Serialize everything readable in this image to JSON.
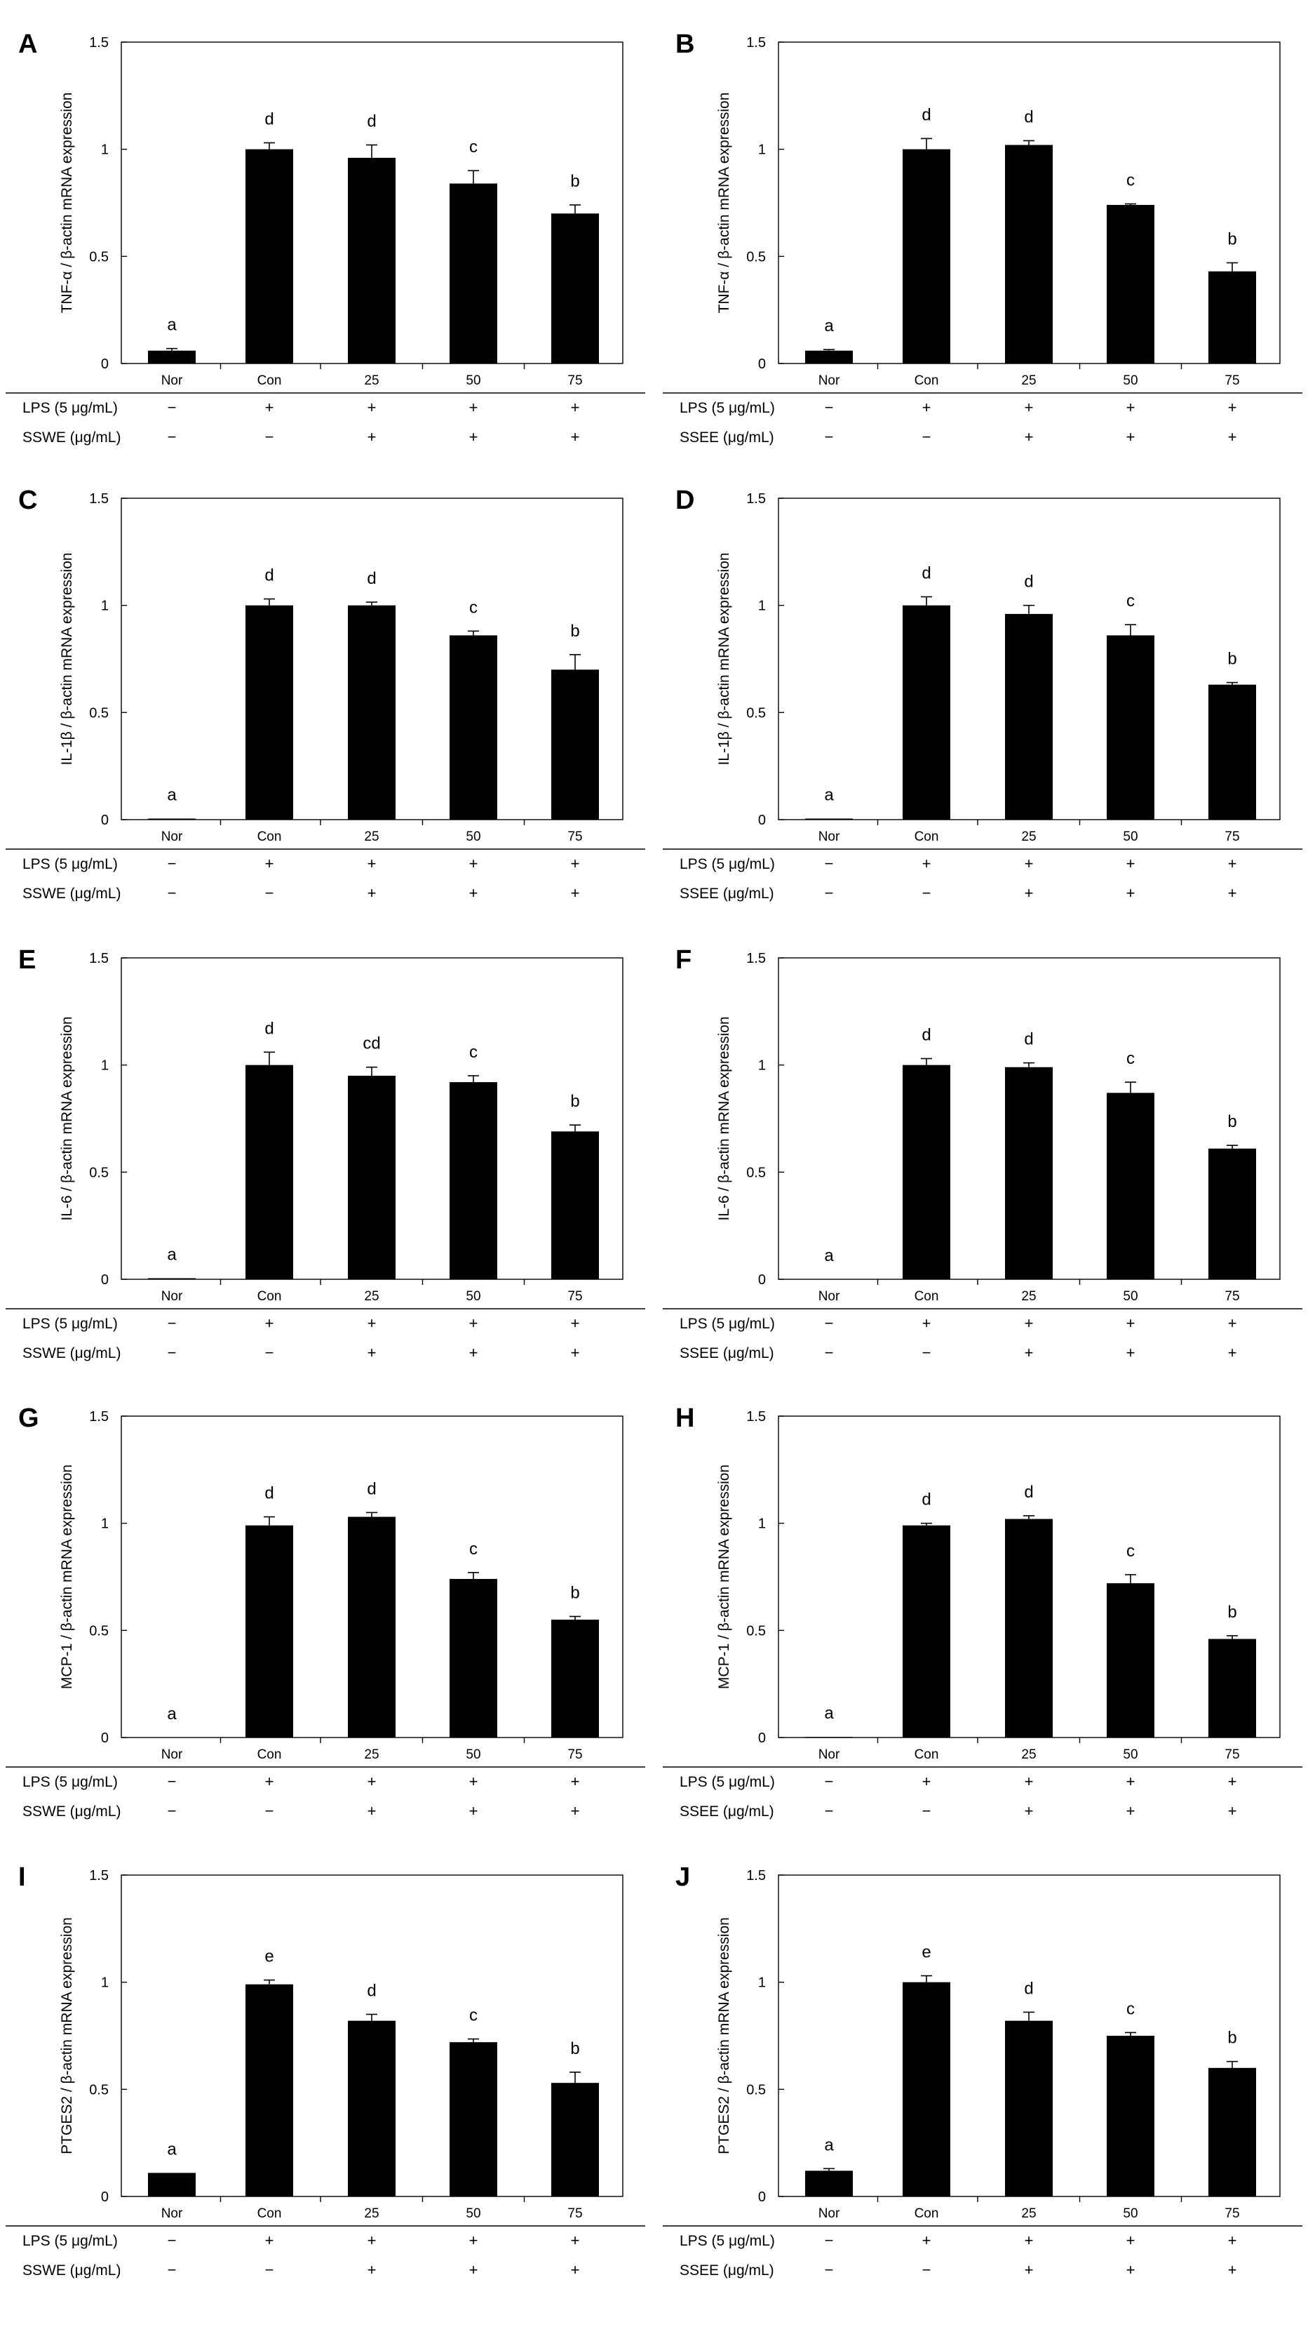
{
  "chart_data": [
    {
      "panel": "A",
      "type": "bar",
      "ylabel_prefix": "TNF-α",
      "ylabel_suffix": "β-actin mRNA expression",
      "categories": [
        "Nor",
        "Con",
        "25",
        "50",
        "75"
      ],
      "values": [
        0.06,
        1.0,
        0.96,
        0.84,
        0.7
      ],
      "errors": [
        0.01,
        0.03,
        0.06,
        0.06,
        0.04
      ],
      "letters": [
        "a",
        "d",
        "d",
        "c",
        "b"
      ],
      "ylim": [
        0,
        1.5
      ],
      "yticks": [
        "0",
        "0.5",
        "1",
        "1.5"
      ],
      "rows": [
        {
          "label": "LPS (5 μg/mL)",
          "values": [
            "−",
            "+",
            "+",
            "+",
            "+"
          ]
        },
        {
          "label": "SSWE (μg/mL)",
          "values": [
            "−",
            "−",
            "+",
            "+",
            "+"
          ]
        }
      ]
    },
    {
      "panel": "B",
      "type": "bar",
      "ylabel_prefix": "TNF-α",
      "ylabel_suffix": "β-actin mRNA expression",
      "categories": [
        "Nor",
        "Con",
        "25",
        "50",
        "75"
      ],
      "values": [
        0.06,
        1.0,
        1.02,
        0.74,
        0.43
      ],
      "errors": [
        0.005,
        0.05,
        0.02,
        0.005,
        0.04
      ],
      "letters": [
        "a",
        "d",
        "d",
        "c",
        "b"
      ],
      "ylim": [
        0,
        1.5
      ],
      "yticks": [
        "0",
        "0.5",
        "1",
        "1.5"
      ],
      "rows": [
        {
          "label": "LPS (5 μg/mL)",
          "values": [
            "−",
            "+",
            "+",
            "+",
            "+"
          ]
        },
        {
          "label": "SSEE (μg/mL)",
          "values": [
            "−",
            "−",
            "+",
            "+",
            "+"
          ]
        }
      ]
    },
    {
      "panel": "C",
      "type": "bar",
      "ylabel_prefix": "IL-1β",
      "ylabel_suffix": "β-actin mRNA expression",
      "categories": [
        "Nor",
        "Con",
        "25",
        "50",
        "75"
      ],
      "values": [
        0.005,
        1.0,
        1.0,
        0.86,
        0.7
      ],
      "errors": [
        0.0,
        0.03,
        0.015,
        0.02,
        0.07
      ],
      "letters": [
        "a",
        "d",
        "d",
        "c",
        "b"
      ],
      "ylim": [
        0,
        1.5
      ],
      "yticks": [
        "0",
        "0.5",
        "1",
        "1.5"
      ],
      "rows": [
        {
          "label": "LPS (5 μg/mL)",
          "values": [
            "−",
            "+",
            "+",
            "+",
            "+"
          ]
        },
        {
          "label": "SSWE (μg/mL)",
          "values": [
            "−",
            "−",
            "+",
            "+",
            "+"
          ]
        }
      ]
    },
    {
      "panel": "D",
      "type": "bar",
      "ylabel_prefix": "IL-1β",
      "ylabel_suffix": "β-actin mRNA expression",
      "categories": [
        "Nor",
        "Con",
        "25",
        "50",
        "75"
      ],
      "values": [
        0.005,
        1.0,
        0.96,
        0.86,
        0.63
      ],
      "errors": [
        0.0,
        0.04,
        0.04,
        0.05,
        0.01
      ],
      "letters": [
        "a",
        "d",
        "d",
        "c",
        "b"
      ],
      "ylim": [
        0,
        1.5
      ],
      "yticks": [
        "0",
        "0.5",
        "1",
        "1.5"
      ],
      "rows": [
        {
          "label": "LPS (5 μg/mL)",
          "values": [
            "−",
            "+",
            "+",
            "+",
            "+"
          ]
        },
        {
          "label": "SSEE (μg/mL)",
          "values": [
            "−",
            "−",
            "+",
            "+",
            "+"
          ]
        }
      ]
    },
    {
      "panel": "E",
      "type": "bar",
      "ylabel_prefix": "IL-6",
      "ylabel_suffix": "β-actin mRNA expression",
      "categories": [
        "Nor",
        "Con",
        "25",
        "50",
        "75"
      ],
      "values": [
        0.005,
        1.0,
        0.95,
        0.92,
        0.69
      ],
      "errors": [
        0.0,
        0.06,
        0.04,
        0.03,
        0.03
      ],
      "letters": [
        "a",
        "d",
        "cd",
        "c",
        "b"
      ],
      "ylim": [
        0,
        1.5
      ],
      "yticks": [
        "0",
        "0.5",
        "1",
        "1.5"
      ],
      "rows": [
        {
          "label": "LPS (5 μg/mL)",
          "values": [
            "−",
            "+",
            "+",
            "+",
            "+"
          ]
        },
        {
          "label": "SSWE (μg/mL)",
          "values": [
            "−",
            "−",
            "+",
            "+",
            "+"
          ]
        }
      ]
    },
    {
      "panel": "F",
      "type": "bar",
      "ylabel_prefix": "IL-6",
      "ylabel_suffix": "β-actin mRNA expression",
      "categories": [
        "Nor",
        "Con",
        "25",
        "50",
        "75"
      ],
      "values": [
        0.0,
        1.0,
        0.99,
        0.87,
        0.61
      ],
      "errors": [
        0.0,
        0.03,
        0.02,
        0.05,
        0.015
      ],
      "letters": [
        "a",
        "d",
        "d",
        "c",
        "b"
      ],
      "ylim": [
        0,
        1.5
      ],
      "yticks": [
        "0",
        "0.5",
        "1",
        "1.5"
      ],
      "rows": [
        {
          "label": "LPS (5 μg/mL)",
          "values": [
            "−",
            "+",
            "+",
            "+",
            "+"
          ]
        },
        {
          "label": "SSEE (μg/mL)",
          "values": [
            "−",
            "−",
            "+",
            "+",
            "+"
          ]
        }
      ]
    },
    {
      "panel": "G",
      "type": "bar",
      "ylabel_prefix": "MCP-1",
      "ylabel_suffix": "β-actin mRNA expression",
      "categories": [
        "Nor",
        "Con",
        "25",
        "50",
        "75"
      ],
      "values": [
        0.0,
        0.99,
        1.03,
        0.74,
        0.55
      ],
      "errors": [
        0.0,
        0.04,
        0.02,
        0.03,
        0.015
      ],
      "letters": [
        "a",
        "d",
        "d",
        "c",
        "b"
      ],
      "ylim": [
        0,
        1.5
      ],
      "yticks": [
        "0",
        "0.5",
        "1",
        "1.5"
      ],
      "rows": [
        {
          "label": "LPS (5 μg/mL)",
          "values": [
            "−",
            "+",
            "+",
            "+",
            "+"
          ]
        },
        {
          "label": "SSWE (μg/mL)",
          "values": [
            "−",
            "−",
            "+",
            "+",
            "+"
          ]
        }
      ]
    },
    {
      "panel": "H",
      "type": "bar",
      "ylabel_prefix": "MCP-1",
      "ylabel_suffix": "β-actin mRNA expression",
      "categories": [
        "Nor",
        "Con",
        "25",
        "50",
        "75"
      ],
      "values": [
        0.003,
        0.99,
        1.02,
        0.72,
        0.46
      ],
      "errors": [
        0.0,
        0.01,
        0.015,
        0.04,
        0.015
      ],
      "letters": [
        "a",
        "d",
        "d",
        "c",
        "b"
      ],
      "ylim": [
        0,
        1.5
      ],
      "yticks": [
        "0",
        "0.5",
        "1",
        "1.5"
      ],
      "rows": [
        {
          "label": "LPS (5 μg/mL)",
          "values": [
            "−",
            "+",
            "+",
            "+",
            "+"
          ]
        },
        {
          "label": "SSEE (μg/mL)",
          "values": [
            "−",
            "−",
            "+",
            "+",
            "+"
          ]
        }
      ]
    },
    {
      "panel": "I",
      "type": "bar",
      "ylabel_prefix": "PTGES2",
      "ylabel_suffix": "β-actin mRNA expression",
      "categories": [
        "Nor",
        "Con",
        "25",
        "50",
        "75"
      ],
      "values": [
        0.11,
        0.99,
        0.82,
        0.72,
        0.53
      ],
      "errors": [
        0.0,
        0.02,
        0.03,
        0.015,
        0.05
      ],
      "letters": [
        "a",
        "e",
        "d",
        "c",
        "b"
      ],
      "ylim": [
        0,
        1.5
      ],
      "yticks": [
        "0",
        "0.5",
        "1",
        "1.5"
      ],
      "rows": [
        {
          "label": "LPS (5 μg/mL)",
          "values": [
            "−",
            "+",
            "+",
            "+",
            "+"
          ]
        },
        {
          "label": "SSWE (μg/mL)",
          "values": [
            "−",
            "−",
            "+",
            "+",
            "+"
          ]
        }
      ]
    },
    {
      "panel": "J",
      "type": "bar",
      "ylabel_prefix": "PTGES2",
      "ylabel_suffix": "β-actin mRNA expression",
      "categories": [
        "Nor",
        "Con",
        "25",
        "50",
        "75"
      ],
      "values": [
        0.12,
        1.0,
        0.82,
        0.75,
        0.6
      ],
      "errors": [
        0.01,
        0.03,
        0.04,
        0.015,
        0.03
      ],
      "letters": [
        "a",
        "e",
        "d",
        "c",
        "b"
      ],
      "ylim": [
        0,
        1.5
      ],
      "yticks": [
        "0",
        "0.5",
        "1",
        "1.5"
      ],
      "rows": [
        {
          "label": "LPS (5 μg/mL)",
          "values": [
            "−",
            "+",
            "+",
            "+",
            "+"
          ]
        },
        {
          "label": "SSEE (μg/mL)",
          "values": [
            "−",
            "−",
            "+",
            "+",
            "+"
          ]
        }
      ]
    }
  ]
}
